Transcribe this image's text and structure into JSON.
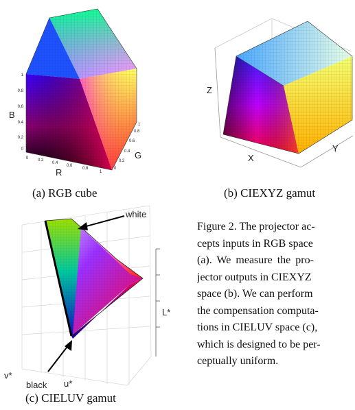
{
  "figure": {
    "panel_a": {
      "caption": "(a) RGB cube",
      "axis_labels": {
        "b": "B",
        "g": "G",
        "r": "R"
      },
      "b_ticks": [
        "0",
        "0.2",
        "0.4",
        "0.6",
        "0.8",
        "1"
      ],
      "r_ticks": [
        "0",
        "0.2",
        "0.4",
        "0.6",
        "0.8",
        "1"
      ],
      "g_ticks": [
        "0",
        "0.2",
        "0.4",
        "0.6",
        "0.8",
        "1"
      ]
    },
    "panel_b": {
      "caption": "(b) CIEXYZ gamut",
      "axis_labels": {
        "x": "X",
        "y": "Y",
        "z": "Z"
      }
    },
    "panel_c": {
      "caption": "(c) CIELUV gamut",
      "axis_labels": {
        "l": "L*",
        "u": "u*",
        "v": "v*"
      },
      "annotations": {
        "white": "white",
        "black": "black"
      }
    }
  },
  "paragraph_lines": [
    "Figure 2. The projector ac-",
    "cepts inputs in RGB space",
    "(a).  We measure the pro-",
    "jector outputs in CIEXYZ",
    "space (b). We can perform",
    "the compensation computa-",
    "tions in CIELUV space (c),",
    "which is designed to be per-",
    "ceptually uniform."
  ]
}
